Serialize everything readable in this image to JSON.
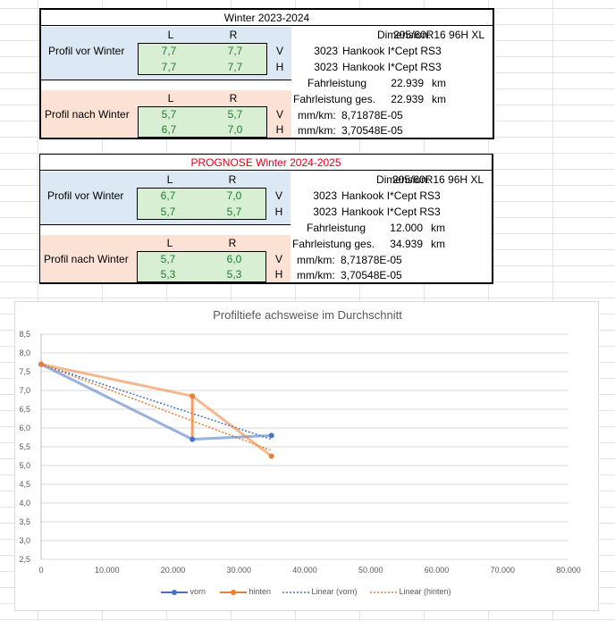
{
  "table1": {
    "title": "Winter 2023-2024",
    "before": {
      "label": "Profil vor Winter",
      "col_l": "L",
      "col_r": "R",
      "row_v": {
        "l": "7,7",
        "r": "7,7",
        "pos": "V"
      },
      "row_h": {
        "l": "7,7",
        "r": "7,7",
        "pos": "H"
      }
    },
    "after": {
      "label": "Profil nach Winter",
      "col_l": "L",
      "col_r": "R",
      "row_v": {
        "l": "5,7",
        "r": "5,7",
        "pos": "V"
      },
      "row_h": {
        "l": "6,7",
        "r": "7,0",
        "pos": "H"
      }
    },
    "dimension_label": "Dimension:",
    "dimension": "205/60R16 96H XL",
    "tire1_code": "3023",
    "tire1": "Hankook I*Cept RS3",
    "tire2_code": "3023",
    "tire2": "Hankook I*Cept RS3",
    "fahrleistung_label": "Fahrleistung",
    "fahrleistung": "22.939",
    "unit1": "km",
    "fahrleistung_ges_label": "Fahrleistung ges.",
    "fahrleistung_ges": "22.939",
    "unit2": "km",
    "mmkm1_label": "mm/km:",
    "mmkm1": "8,71878E-05",
    "mmkm2_label": "mm/km:",
    "mmkm2": "3,70548E-05"
  },
  "table2": {
    "title": "PROGNOSE Winter 2024-2025",
    "title_color": "#e0001b",
    "before": {
      "label": "Profil vor Winter",
      "col_l": "L",
      "col_r": "R",
      "row_v": {
        "l": "6,7",
        "r": "7,0",
        "pos": "V"
      },
      "row_h": {
        "l": "5,7",
        "r": "5,7",
        "pos": "H"
      }
    },
    "after": {
      "label": "Profil nach Winter",
      "col_l": "L",
      "col_r": "R",
      "row_v": {
        "l": "5,7",
        "r": "6,0",
        "pos": "V"
      },
      "row_h": {
        "l": "5,3",
        "r": "5,3",
        "pos": "H"
      }
    },
    "dimension_label": "Dimension:",
    "dimension": "205/60R16 96H XL",
    "tire1_code": "3023",
    "tire1": "Hankook I*Cept RS3",
    "tire2_code": "3023",
    "tire2": "Hankook I*Cept RS3",
    "fahrleistung_label": "Fahrleistung",
    "fahrleistung": "12.000",
    "unit1": "km",
    "fahrleistung_ges_label": "Fahrleistung ges.",
    "fahrleistung_ges": "34.939",
    "unit2": "km",
    "mmkm1_label": "mm/km:",
    "mmkm1": "8,71878E-05",
    "mmkm2_label": "mm/km:",
    "mmkm2": "3,70548E-05"
  },
  "chart_data": {
    "type": "line",
    "title": "Profiltiefe achsweise im Durchschnitt",
    "xlim": [
      0,
      80000
    ],
    "ylim": [
      2.5,
      8.5
    ],
    "x_ticks": [
      "0",
      "10.000",
      "20.000",
      "30.000",
      "40.000",
      "50.000",
      "60.000",
      "70.000",
      "80.000"
    ],
    "y_ticks": [
      "2,5",
      "3,0",
      "3,5",
      "4,0",
      "4,5",
      "5,0",
      "5,5",
      "6,0",
      "6,5",
      "7,0",
      "7,5",
      "8,0",
      "8,5"
    ],
    "series": [
      {
        "name": "vorn",
        "color": "#4472c4",
        "x": [
          0,
          22939,
          22939,
          34939
        ],
        "y": [
          7.7,
          5.7,
          5.7,
          5.8
        ]
      },
      {
        "name": "hinten",
        "color": "#ed7d31",
        "x": [
          0,
          22939,
          22939,
          34939
        ],
        "y": [
          7.7,
          6.85,
          5.7,
          5.25
        ]
      }
    ],
    "series_plot": [
      {
        "name": "vorn",
        "color": "#4472c4",
        "x": [
          0,
          22939,
          34939
        ],
        "y": [
          7.7,
          5.7,
          5.8
        ]
      },
      {
        "name": "hinten",
        "color": "#ed7d31",
        "x": [
          0,
          22939,
          34939
        ],
        "y": [
          7.7,
          6.85,
          5.25
        ]
      }
    ],
    "trendlines": [
      {
        "name": "Linear (vorn)",
        "color": "#4472c4",
        "x": [
          0,
          34939
        ],
        "y": [
          7.7,
          5.7
        ]
      },
      {
        "name": "Linear (hinten)",
        "color": "#ed7d31",
        "x": [
          0,
          34939
        ],
        "y": [
          7.7,
          5.4
        ]
      }
    ],
    "grid": true,
    "legend": "bottom"
  }
}
